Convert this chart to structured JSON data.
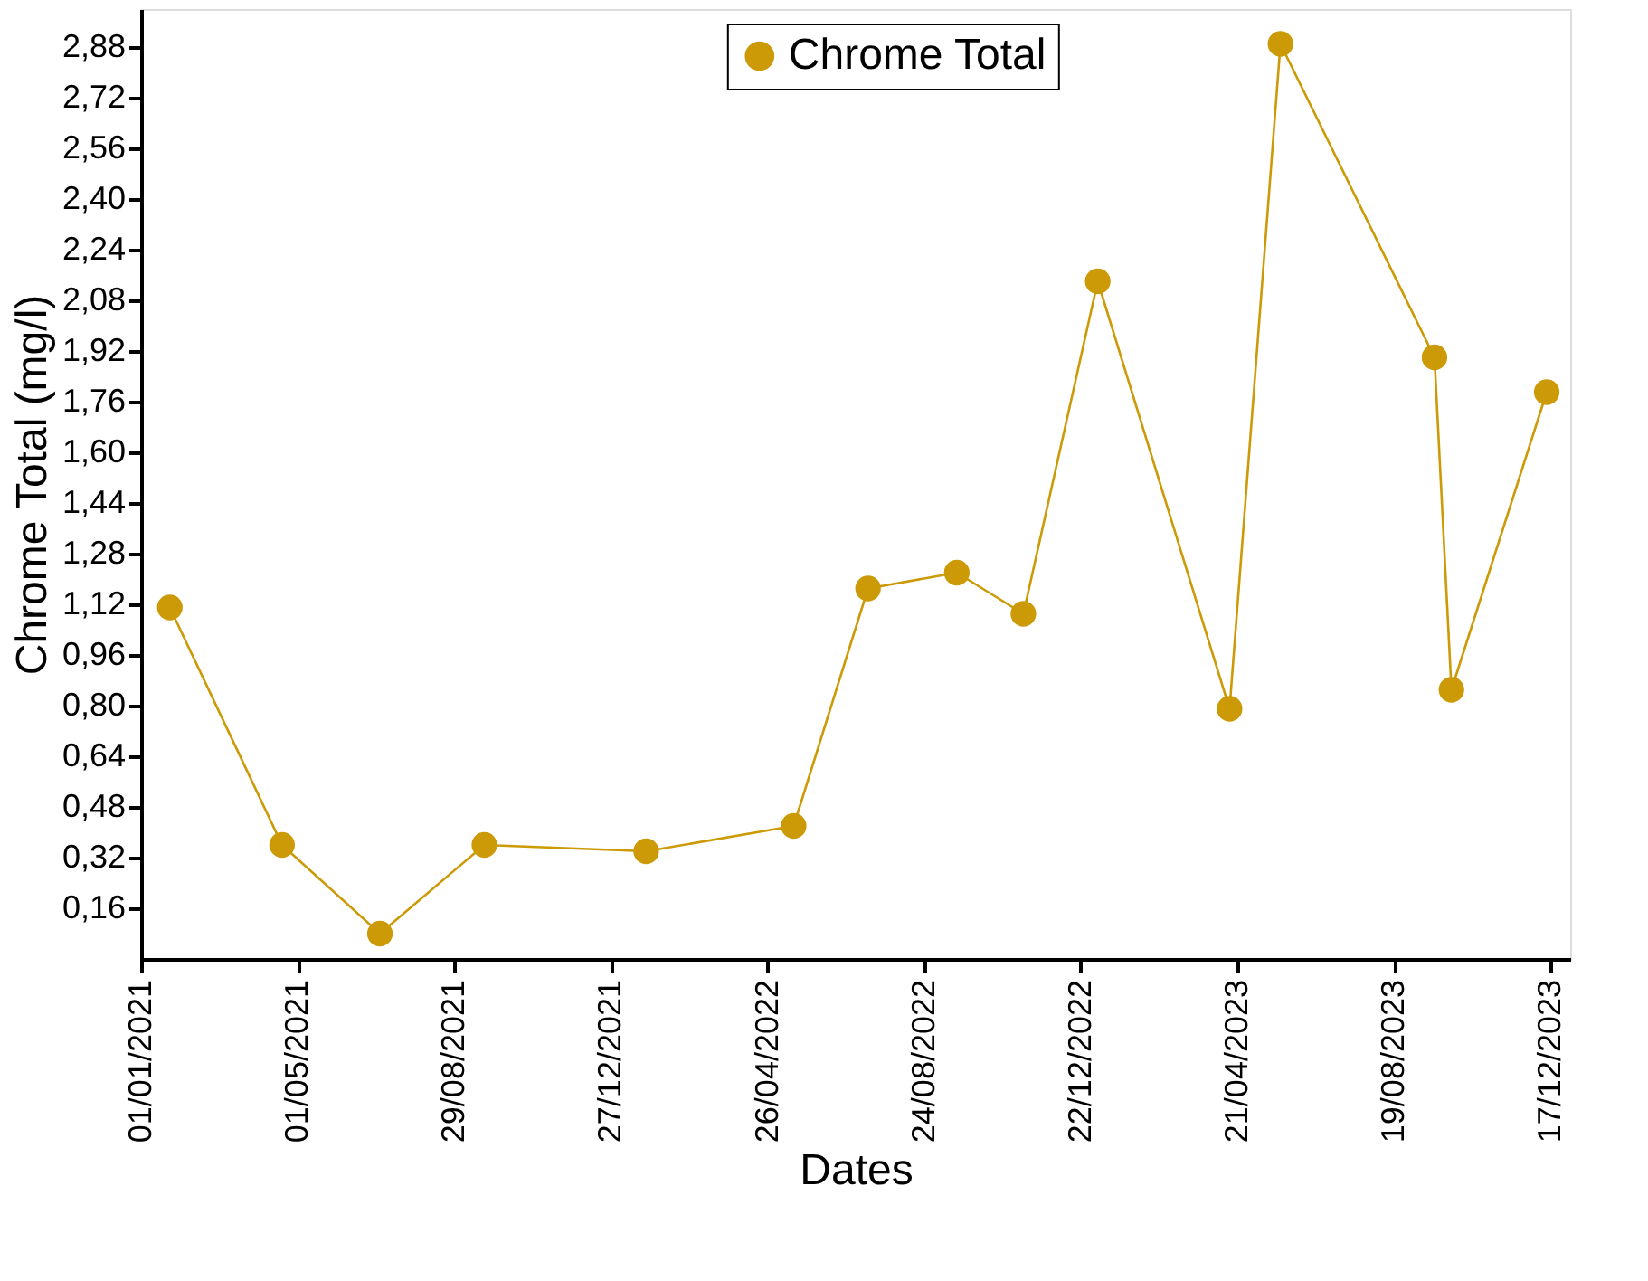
{
  "chart_data": {
    "type": "line",
    "xlabel": "Dates",
    "ylabel": "Chrome Total (mg/l)",
    "x": [
      "2021-01-23",
      "2021-04-19",
      "2021-07-03",
      "2021-09-21",
      "2022-01-23",
      "2022-05-16",
      "2022-07-12",
      "2022-09-18",
      "2022-11-08",
      "2023-01-04",
      "2023-04-15",
      "2023-05-24",
      "2023-09-19",
      "2023-10-02",
      "2023-12-14"
    ],
    "series": [
      {
        "name": "Chrome Total",
        "color": "#cc9a06",
        "values": [
          1.11,
          0.36,
          0.08,
          0.36,
          0.34,
          0.42,
          1.17,
          1.22,
          1.09,
          2.14,
          0.79,
          2.89,
          1.9,
          0.85,
          1.79
        ]
      }
    ],
    "xlim": [
      "2021-01-01",
      "2024-01-01"
    ],
    "xticks": [
      {
        "value": "2021-01-01",
        "label": "01/01/2021"
      },
      {
        "value": "2021-05-01",
        "label": "01/05/2021"
      },
      {
        "value": "2021-08-29",
        "label": "29/08/2021"
      },
      {
        "value": "2021-12-27",
        "label": "27/12/2021"
      },
      {
        "value": "2022-04-26",
        "label": "26/04/2022"
      },
      {
        "value": "2022-08-24",
        "label": "24/08/2022"
      },
      {
        "value": "2022-12-22",
        "label": "22/12/2022"
      },
      {
        "value": "2023-04-21",
        "label": "21/04/2023"
      },
      {
        "value": "2023-08-19",
        "label": "19/08/2023"
      },
      {
        "value": "2023-12-17",
        "label": "17/12/2023"
      }
    ],
    "ylim": [
      0,
      3.0
    ],
    "yticks": [
      {
        "value": 0.16,
        "label": "0,16"
      },
      {
        "value": 0.32,
        "label": "0,32"
      },
      {
        "value": 0.48,
        "label": "0,48"
      },
      {
        "value": 0.64,
        "label": "0,64"
      },
      {
        "value": 0.8,
        "label": "0,80"
      },
      {
        "value": 0.96,
        "label": "0,96"
      },
      {
        "value": 1.12,
        "label": "1,12"
      },
      {
        "value": 1.28,
        "label": "1,28"
      },
      {
        "value": 1.44,
        "label": "1,44"
      },
      {
        "value": 1.6,
        "label": "1,60"
      },
      {
        "value": 1.76,
        "label": "1,76"
      },
      {
        "value": 1.92,
        "label": "1,92"
      },
      {
        "value": 2.08,
        "label": "2,08"
      },
      {
        "value": 2.24,
        "label": "2,24"
      },
      {
        "value": 2.4,
        "label": "2,40"
      },
      {
        "value": 2.56,
        "label": "2,56"
      },
      {
        "value": 2.72,
        "label": "2,72"
      },
      {
        "value": 2.88,
        "label": "2,88"
      }
    ],
    "grid": false,
    "legend": "top",
    "marker": "circle",
    "line_style": "solid"
  }
}
